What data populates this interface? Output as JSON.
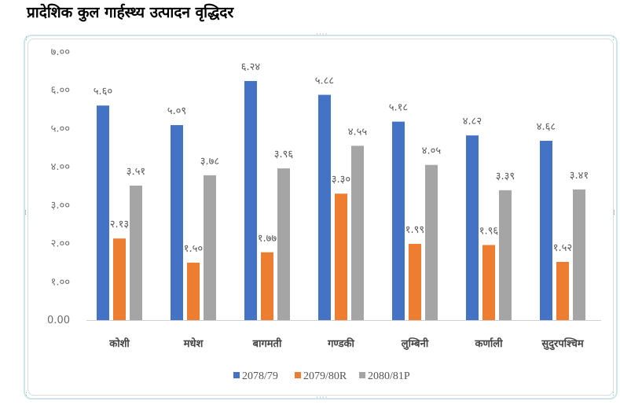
{
  "title": "प्रादेशिक कुल गार्हस्थ्य उत्पादन वृद्धिदर",
  "chart_data": {
    "type": "bar",
    "title": "प्रादेशिक कुल गार्हस्थ्य उत्पादन वृद्धिदर",
    "xlabel": "",
    "ylabel": "",
    "ylim": [
      0,
      7
    ],
    "grid": false,
    "legend_position": "bottom",
    "y_ticks": [
      0,
      1,
      2,
      3,
      4,
      5,
      6,
      7
    ],
    "y_tick_labels": [
      "0.00",
      "१.००",
      "२.००",
      "३.००",
      "४.००",
      "५.००",
      "६.००",
      "७.००"
    ],
    "categories": [
      "कोशी",
      "मधेश",
      "बागमती",
      "गण्डकी",
      "लुम्बिनी",
      "कर्णाली",
      "सुदुरपश्चिम"
    ],
    "series": [
      {
        "name": "2078/79",
        "color": "#4472c4",
        "values": [
          5.6,
          5.09,
          6.24,
          5.88,
          5.18,
          4.82,
          4.68
        ],
        "labels": [
          "५.६०",
          "५.०९",
          "६.२४",
          "५.८८",
          "५.१८",
          "४.८२",
          "४.६८"
        ]
      },
      {
        "name": "2079/80R",
        "color": "#ed7d31",
        "values": [
          2.13,
          1.5,
          1.77,
          3.3,
          1.99,
          1.96,
          1.52
        ],
        "labels": [
          "२.१३",
          "१.५०",
          "१.७७",
          "३.३०",
          "१.९९",
          "१.९६",
          "१.५२"
        ]
      },
      {
        "name": "2080/81P",
        "color": "#a5a5a5",
        "values": [
          3.51,
          3.78,
          3.96,
          4.55,
          4.05,
          3.39,
          3.41
        ],
        "labels": [
          "३.५१",
          "३.७८",
          "३.९६",
          "४.५५",
          "४.०५",
          "३.३९",
          "३.४१"
        ]
      }
    ]
  }
}
